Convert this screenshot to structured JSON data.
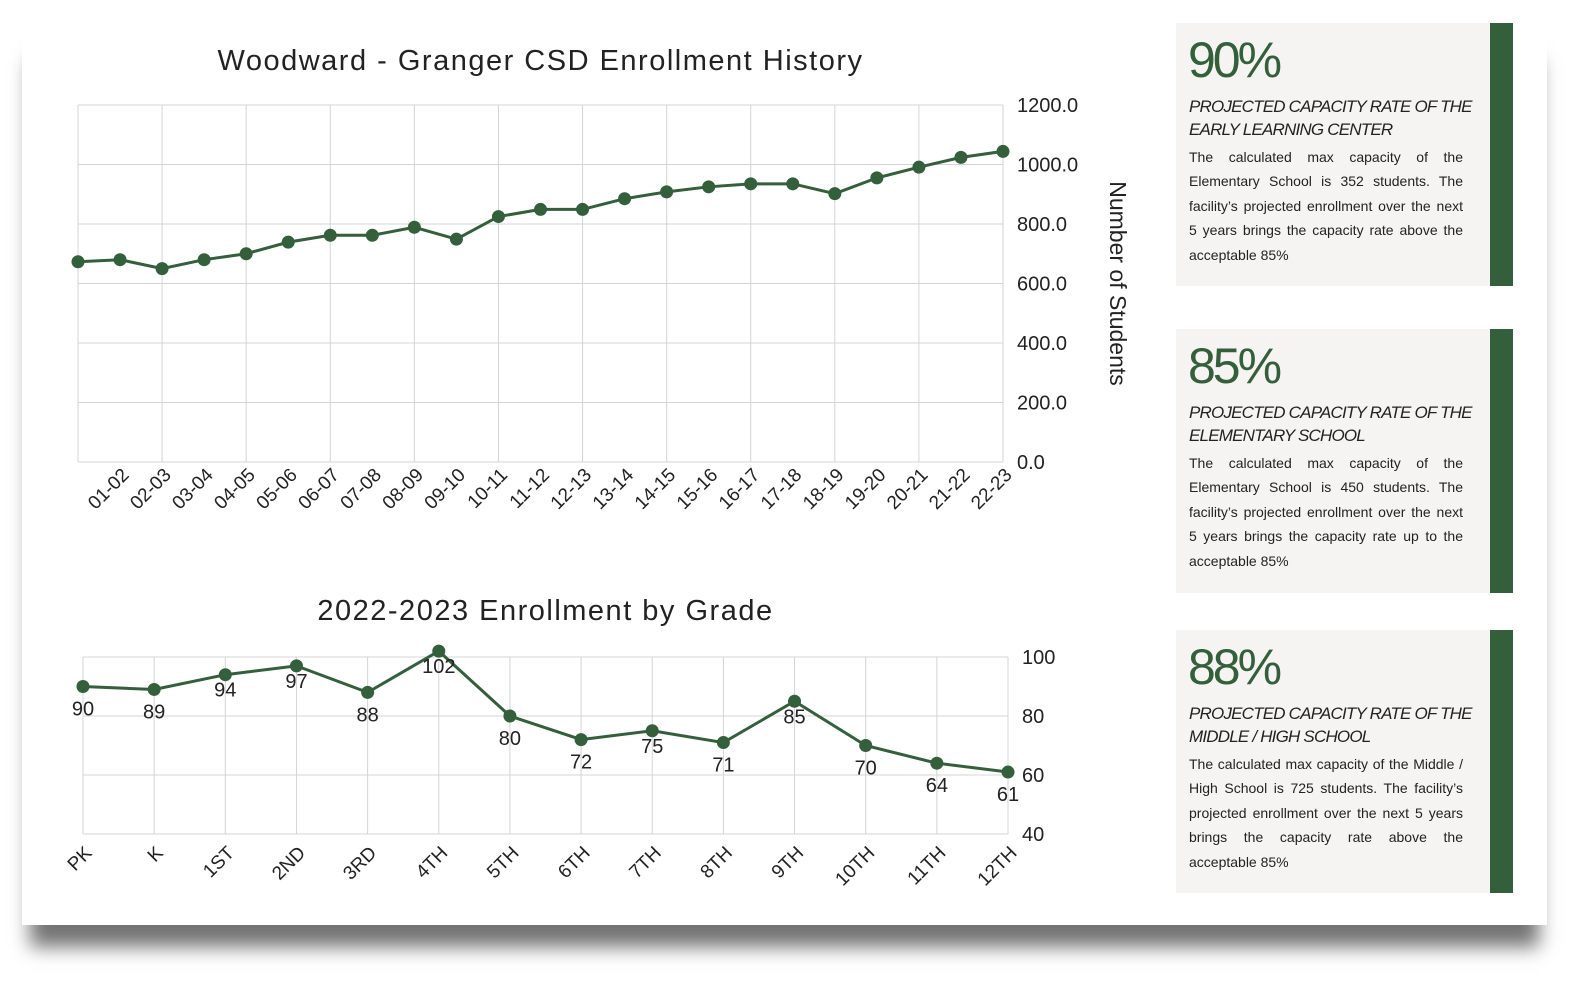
{
  "chart_data": [
    {
      "type": "line",
      "title": "Woodward - Granger CSD Enrollment History",
      "ylabel": "Number of Students",
      "xlabel": "",
      "ylim": [
        0,
        1200
      ],
      "yticks": [
        "0.0",
        "200.0",
        "400.0",
        "600.0",
        "800.0",
        "1000.0",
        "1200.0"
      ],
      "y_axis_side": "right",
      "grid": true,
      "categories": [
        "",
        "01-02",
        "02-03",
        "03-04",
        "04-05",
        "05-06",
        "06-07",
        "07-08",
        "08-09",
        "09-10",
        "10-11",
        "11-12",
        "12-13",
        "13-14",
        "14-15",
        "15-16",
        "16-17",
        "17-18",
        "18-19",
        "19-20",
        "20-21",
        "21-22",
        "22-23"
      ],
      "values": [
        673,
        680,
        650,
        680,
        700,
        739,
        762,
        762,
        789,
        749,
        825,
        849,
        849,
        885,
        908,
        925,
        935,
        935,
        902,
        955,
        991,
        1024,
        1044
      ],
      "color": "#335f3a"
    },
    {
      "type": "line",
      "title": "2022-2023 Enrollment by Grade",
      "xlabel": "",
      "ylabel": "",
      "ylim": [
        40,
        100
      ],
      "yticks": [
        "40",
        "60",
        "80",
        "100"
      ],
      "y_axis_side": "right",
      "grid": true,
      "categories": [
        "PK",
        "K",
        "1ST",
        "2ND",
        "3RD",
        "4TH",
        "5TH",
        "6TH",
        "7TH",
        "8TH",
        "9TH",
        "10TH",
        "11TH",
        "12TH"
      ],
      "values": [
        90,
        89,
        94,
        97,
        88,
        102,
        80,
        72,
        75,
        71,
        85,
        70,
        64,
        61
      ],
      "data_labels": true,
      "color": "#335f3a"
    }
  ],
  "cards": [
    {
      "percent": "90%",
      "subtitle": "PROJECTED CAPACITY RATE OF THE EARLY LEARNING CENTER",
      "description": "The calculated max capacity of the Elementary School is 352 students. The facility’s projected enrollment over the next 5 years brings the capacity rate above the acceptable 85%"
    },
    {
      "percent": "85%",
      "subtitle": "PROJECTED CAPACITY RATE OF THE ELEMENTARY SCHOOL",
      "description": "The calculated max capacity of the Elementary School is 450 students. The facility’s projected enrollment over the next 5 years brings the capacity rate up to the acceptable 85%"
    },
    {
      "percent": "88%",
      "subtitle": "PROJECTED CAPACITY RATE OF THE MIDDLE / HIGH SCHOOL",
      "description": "The calculated max capacity of the Middle / High School is 725 students. The facility’s projected enrollment over the next 5 years brings the capacity rate above the acceptable 85%"
    }
  ],
  "colors": {
    "accent": "#335f3a",
    "card_bg": "#f5f4f2",
    "grid": "#d4d4d4"
  }
}
